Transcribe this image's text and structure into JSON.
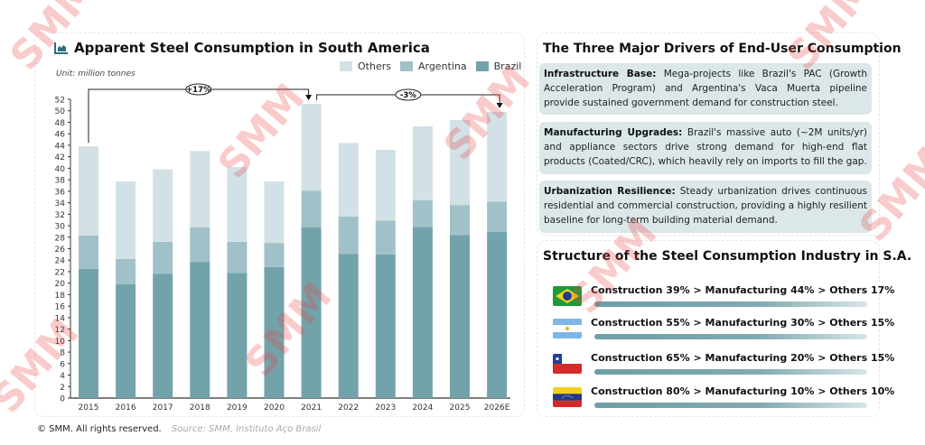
{
  "chart_data": {
    "type": "bar",
    "stacked": true,
    "title": "Apparent Steel Consumption in South America",
    "unit_label": "Unit: million tonnes",
    "xlabel": "",
    "ylabel": "",
    "ylim": [
      0,
      52
    ],
    "yticks": [
      0,
      2,
      4,
      6,
      8,
      10,
      12,
      14,
      16,
      18,
      20,
      22,
      24,
      26,
      28,
      30,
      32,
      34,
      36,
      38,
      40,
      42,
      44,
      46,
      48,
      50,
      52
    ],
    "grid": false,
    "legend_position": "top-right",
    "categories": [
      "2015",
      "2016",
      "2017",
      "2018",
      "2019",
      "2020",
      "2021",
      "2022",
      "2023",
      "2024",
      "2025",
      "2026E"
    ],
    "series": [
      {
        "name": "Brazil",
        "color": "#72a3ab",
        "values": [
          22.5,
          19.8,
          21.6,
          23.7,
          21.8,
          22.8,
          29.7,
          25.1,
          25.0,
          29.8,
          28.4,
          28.9
        ]
      },
      {
        "name": "Argentina",
        "color": "#a1c1c8",
        "values": [
          5.8,
          4.4,
          5.6,
          6.0,
          5.4,
          4.2,
          6.4,
          6.5,
          5.9,
          4.6,
          5.2,
          5.3
        ]
      },
      {
        "name": "Others",
        "color": "#d2e1e5",
        "values": [
          15.5,
          13.5,
          12.6,
          13.3,
          13.0,
          10.7,
          15.1,
          12.8,
          12.3,
          12.9,
          14.8,
          15.6
        ]
      }
    ],
    "legend_order": [
      "Others",
      "Argentina",
      "Brazil"
    ],
    "annotations": [
      {
        "label": "+17%",
        "from": "2015",
        "to": "2021"
      },
      {
        "label": "-3%",
        "from": "2021",
        "to": "2026E"
      }
    ]
  },
  "drivers": {
    "title": "The Three Major Drivers of End-User Consumption",
    "items": [
      {
        "heading": "Infrastructure Base:",
        "text": " Mega-projects like Brazil's PAC (Growth Acceleration Program) and Argentina's Vaca Muerta pipeline provide sustained government demand for construction steel."
      },
      {
        "heading": "Manufacturing Upgrades:",
        "text": " Brazil's massive auto (~2M units/yr) and appliance sectors drive strong demand for high-end flat products (Coated/CRC), which heavily rely on imports to fill the gap."
      },
      {
        "heading": "Urbanization Resilience:",
        "text": " Steady urbanization drives continuous residential and commercial construction, providing a highly resilient baseline for long-term building material demand."
      }
    ]
  },
  "structure": {
    "title": "Structure of the Steel Consumption Industry in S.A.",
    "rows": [
      {
        "country": "Brazil",
        "flag": "brazil-flag-icon",
        "text": "Construction 39% > Manufacturing 44% > Others 17%",
        "construction": 39,
        "manufacturing": 44,
        "others": 17
      },
      {
        "country": "Argentina",
        "flag": "argentina-flag-icon",
        "text": "Construction 55% > Manufacturing 30% > Others 15%",
        "construction": 55,
        "manufacturing": 30,
        "others": 15
      },
      {
        "country": "Chile",
        "flag": "chile-flag-icon",
        "text": "Construction 65% > Manufacturing 20% > Others 15%",
        "construction": 65,
        "manufacturing": 20,
        "others": 15
      },
      {
        "country": "Venezuela",
        "flag": "venezuela-flag-icon",
        "text": "Construction 80% > Manufacturing 10% > Others 10%",
        "construction": 80,
        "manufacturing": 10,
        "others": 10
      }
    ]
  },
  "footer": {
    "copyright": "© SMM. All rights reserved.",
    "source": "Source: SMM,  Instituto Aço Brasil"
  },
  "watermark": "SMM"
}
